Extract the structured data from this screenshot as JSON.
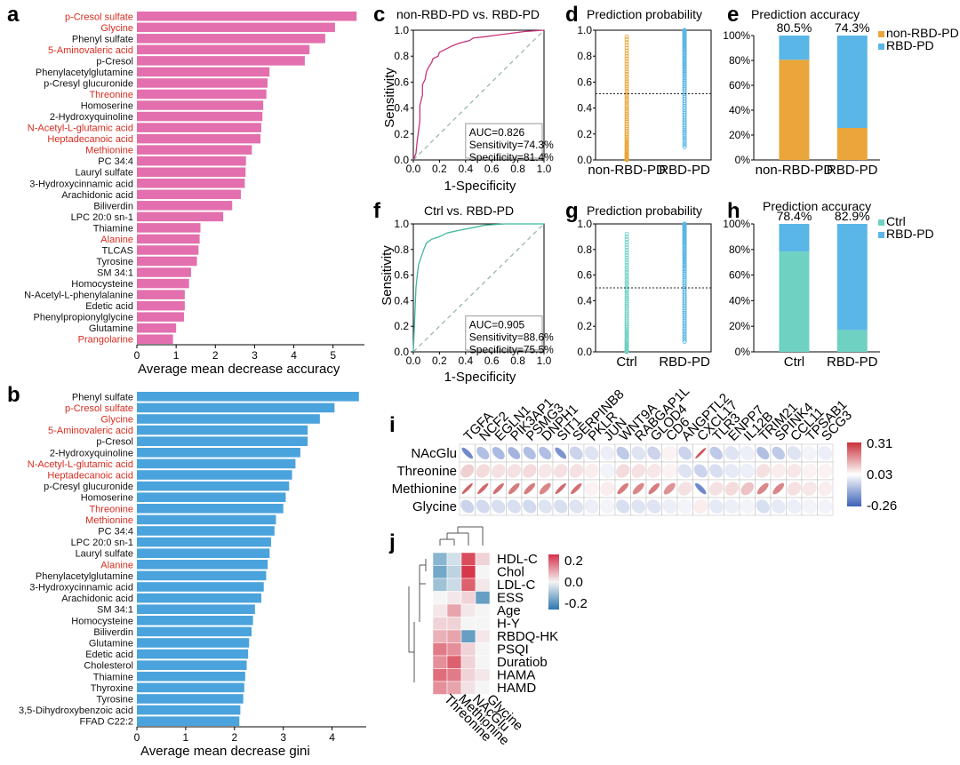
{
  "colors": {
    "pink": "#e36fae",
    "blue": "#4aa3dc",
    "orange": "#eaa63a",
    "lightblue": "#5ab6e6",
    "teal": "#6fd1c2",
    "roc_pink": "#c8357a",
    "roc_teal": "#3fb69d",
    "red_text": "#d62d20"
  },
  "panels": {
    "a": {
      "letter": "a",
      "xlabel": "Average mean decrease accuracy",
      "ticks": [
        "0",
        "1",
        "2",
        "3",
        "4",
        "5"
      ]
    },
    "b": {
      "letter": "b",
      "xlabel": "Average mean decrease gini",
      "ticks": [
        "0",
        "1",
        "2",
        "3",
        "4"
      ]
    },
    "c": {
      "letter": "c",
      "title": "non-RBD-PD vs. RBD-PD",
      "ylabel": "Sensitivity",
      "xlabel": "1-Specificity",
      "auc": "AUC=0.826",
      "sens": "Sensitivity=74.3%",
      "spec": "Specificity=81.4%"
    },
    "d": {
      "letter": "d",
      "title": "Prediction probability",
      "cats": [
        "non-RBD-PD",
        "RBD-PD"
      ]
    },
    "e": {
      "letter": "e",
      "title": "Prediction accuracy",
      "cats": [
        "non-RBD-PD",
        "RBD-PD"
      ],
      "pct": [
        "80.5%",
        "74.3%"
      ],
      "legend": [
        "non-RBD-PD",
        "RBD-PD"
      ]
    },
    "f": {
      "letter": "f",
      "title": "Ctrl vs. RBD-PD",
      "ylabel": "Sensitivity",
      "xlabel": "1-Specificity",
      "auc": "AUC=0.905",
      "sens": "Sensitivity=88.6%",
      "spec": "Specificity=75.5%"
    },
    "g": {
      "letter": "g",
      "title": "Prediction probability",
      "cats": [
        "Ctrl",
        "RBD-PD"
      ]
    },
    "h": {
      "letter": "h",
      "title": "Prediction accuracy",
      "cats": [
        "Ctrl",
        "RBD-PD"
      ],
      "pct": [
        "78.4%",
        "82.9%"
      ],
      "legend": [
        "Ctrl",
        "RBD-PD"
      ]
    },
    "i": {
      "letter": "i",
      "rows": [
        "NAcGlu",
        "Threonine",
        "Methionine",
        "Glycine"
      ],
      "cols": [
        "TGFA",
        "NCF2",
        "EGLN1",
        "PIK3AP1",
        "PSMG3",
        "DNPH1",
        "SIT1",
        "SERPINB8",
        "PKLR",
        "JUN",
        "WNT9A",
        "RABGAP1L",
        "GLOD4",
        "CD6",
        "ANGPTL2",
        "CXCL17",
        "TLR3",
        "ENPP7",
        "IL12B",
        "TRIM21",
        "SPINK4",
        "CCL11",
        "TPSAB1",
        "SCG3"
      ],
      "scale": [
        "0.31",
        "0.03",
        "-0.26"
      ]
    },
    "j": {
      "letter": "j",
      "rows": [
        "HDL-C",
        "Chol",
        "LDL-C",
        "ESS",
        "Age",
        "H-Y",
        "RBDQ-HK",
        "PSQI",
        "Duratiob",
        "HAMA",
        "HAMD"
      ],
      "cols": [
        "Threonine",
        "Methionine",
        "NAcGlu",
        "Glycine"
      ],
      "scale": [
        "0.2",
        "0.0",
        "-0.2"
      ]
    }
  },
  "chart_data": [
    {
      "type": "bar",
      "panel": "a",
      "categories": [
        "p-Cresol sulfate",
        "Glycine",
        "Phenyl sulfate",
        "5-Aminovaleric acid",
        "p-Cresol",
        "Phenylacetylglutamine",
        "p-Cresyl glucuronide",
        "Threonine",
        "Homoserine",
        "2-Hydroxyquinoline",
        "N-Acetyl-L-glutamic acid",
        "Heptadecanoic acid",
        "Methionine",
        "PC 34:4",
        "Lauryl sulfate",
        "3-Hydroxycinnamic acid",
        "Arachidonic acid",
        "Biliverdin",
        "LPC 20:0 sn-1",
        "Thiamine",
        "Alanine",
        "TLCAS",
        "Tyrosine",
        "SM 34:1",
        "Homocysteine",
        "N-Acetyl-L-phenylalanine",
        "Edetic acid",
        "Phenylpropionylglycine",
        "Glutamine",
        "Prangolarine"
      ],
      "values": [
        5.6,
        5.05,
        4.8,
        4.4,
        4.28,
        3.38,
        3.33,
        3.3,
        3.22,
        3.2,
        3.17,
        3.15,
        2.93,
        2.78,
        2.77,
        2.75,
        2.65,
        2.43,
        2.2,
        1.62,
        1.6,
        1.57,
        1.53,
        1.38,
        1.33,
        1.22,
        1.22,
        1.2,
        1.0,
        0.92
      ],
      "highlight": [
        1,
        1,
        0,
        1,
        0,
        0,
        0,
        1,
        0,
        0,
        1,
        1,
        1,
        0,
        0,
        0,
        0,
        0,
        0,
        0,
        1,
        0,
        0,
        0,
        0,
        0,
        0,
        0,
        0,
        1
      ],
      "xlabel": "Average mean decrease accuracy",
      "xlim": [
        0,
        5.8
      ]
    },
    {
      "type": "bar",
      "panel": "b",
      "categories": [
        "Phenyl sulfate",
        "p-Cresol sulfate",
        "Glycine",
        "5-Aminovaleric acid",
        "p-Cresol",
        "2-Hydroxyquinoline",
        "N-Acetyl-L-glutamic acid",
        "Heptadecanoic acid",
        "p-Cresyl glucuronide",
        "Homoserine",
        "Threonine",
        "Methionine",
        "PC 34:4",
        "LPC 20:0 sn-1",
        "Lauryl sulfate",
        "Alanine",
        "Phenylacetylglutamine",
        "3-Hydroxycinnamic acid",
        "Arachidonic acid",
        "SM 34:1",
        "Homocysteine",
        "Biliverdin",
        "Glutamine",
        "Edetic acid",
        "Cholesterol",
        "Thiamine",
        "Thyroxine",
        "Tyrosine",
        "3,5-Dihydroxybenzoic acid",
        "FFAD C22:2"
      ],
      "values": [
        4.55,
        4.05,
        3.75,
        3.5,
        3.5,
        3.35,
        3.25,
        3.18,
        3.12,
        3.05,
        3.0,
        2.85,
        2.82,
        2.75,
        2.72,
        2.68,
        2.65,
        2.6,
        2.55,
        2.42,
        2.38,
        2.35,
        2.3,
        2.28,
        2.25,
        2.22,
        2.2,
        2.18,
        2.12,
        2.1
      ],
      "highlight": [
        0,
        1,
        1,
        1,
        0,
        0,
        1,
        1,
        0,
        0,
        1,
        1,
        0,
        0,
        0,
        1,
        0,
        0,
        0,
        0,
        0,
        0,
        0,
        0,
        0,
        0,
        0,
        0,
        0,
        0
      ],
      "xlabel": "Average mean decrease gini",
      "xlim": [
        0,
        4.7
      ]
    },
    {
      "type": "line",
      "panel": "c",
      "x": [
        0,
        0.02,
        0.03,
        0.05,
        0.05,
        0.07,
        0.07,
        0.09,
        0.1,
        0.12,
        0.14,
        0.15,
        0.19,
        0.2,
        0.24,
        0.3,
        0.35,
        0.43,
        0.46,
        0.55,
        0.62,
        0.7,
        0.85,
        1.0
      ],
      "y": [
        0,
        0.05,
        0.15,
        0.3,
        0.42,
        0.5,
        0.58,
        0.62,
        0.68,
        0.72,
        0.75,
        0.78,
        0.8,
        0.83,
        0.85,
        0.88,
        0.9,
        0.92,
        0.94,
        0.95,
        0.96,
        0.97,
        0.99,
        1.0
      ],
      "xlabel": "1-Specificity",
      "ylabel": "Sensitivity",
      "xlim": [
        0,
        1
      ],
      "ylim": [
        0,
        1
      ]
    },
    {
      "type": "line",
      "panel": "f",
      "x": [
        0,
        0.01,
        0.02,
        0.03,
        0.04,
        0.06,
        0.08,
        0.1,
        0.14,
        0.2,
        0.26,
        0.35,
        0.45,
        0.55,
        0.7,
        0.85,
        1.0
      ],
      "y": [
        0,
        0.25,
        0.5,
        0.6,
        0.68,
        0.74,
        0.8,
        0.85,
        0.88,
        0.9,
        0.93,
        0.95,
        0.97,
        0.99,
        1.0,
        1.0,
        1.0
      ],
      "xlabel": "1-Specificity",
      "ylabel": "Sensitivity",
      "xlim": [
        0,
        1
      ],
      "ylim": [
        0,
        1
      ]
    },
    {
      "type": "scatter",
      "panel": "d",
      "categories": [
        "non-RBD-PD",
        "RBD-PD"
      ],
      "ranges": [
        [
          0.0,
          0.95
        ],
        [
          0.1,
          1.0
        ]
      ],
      "threshold": 0.51,
      "ylim": [
        0,
        1
      ]
    },
    {
      "type": "scatter",
      "panel": "g",
      "categories": [
        "Ctrl",
        "RBD-PD"
      ],
      "ranges": [
        [
          0.0,
          0.92
        ],
        [
          0.08,
          1.0
        ]
      ],
      "threshold": 0.5,
      "ylim": [
        0,
        1
      ]
    },
    {
      "type": "bar",
      "panel": "e",
      "categories": [
        "non-RBD-PD",
        "RBD-PD"
      ],
      "series": [
        {
          "name": "non-RBD-PD",
          "values": [
            80.5,
            25.7
          ]
        },
        {
          "name": "RBD-PD",
          "values": [
            19.5,
            74.3
          ]
        }
      ],
      "ylim": [
        0,
        100
      ]
    },
    {
      "type": "bar",
      "panel": "h",
      "categories": [
        "Ctrl",
        "RBD-PD"
      ],
      "series": [
        {
          "name": "Ctrl",
          "values": [
            78.4,
            17.1
          ]
        },
        {
          "name": "RBD-PD",
          "values": [
            21.6,
            82.9
          ]
        }
      ],
      "ylim": [
        0,
        100
      ]
    },
    {
      "type": "heatmap",
      "panel": "i",
      "rows": [
        "NAcGlu",
        "Threonine",
        "Methionine",
        "Glycine"
      ],
      "cols": [
        "TGFA",
        "NCF2",
        "EGLN1",
        "PIK3AP1",
        "PSMG3",
        "DNPH1",
        "SIT1",
        "SERPINB8",
        "PKLR",
        "JUN",
        "WNT9A",
        "RABGAP1L",
        "GLOD4",
        "CD6",
        "ANGPTL2",
        "CXCL17",
        "TLR3",
        "ENPP7",
        "IL12B",
        "TRIM21",
        "SPINK4",
        "CCL11",
        "TPSAB1",
        "SCG3"
      ],
      "values": [
        [
          -0.22,
          -0.12,
          -0.13,
          -0.14,
          -0.12,
          -0.12,
          -0.2,
          -0.08,
          -0.05,
          -0.03,
          -0.1,
          -0.05,
          -0.08,
          0.02,
          -0.08,
          0.28,
          -0.1,
          -0.05,
          -0.03,
          -0.12,
          -0.1,
          -0.05,
          -0.02,
          -0.03
        ],
        [
          0.08,
          0.06,
          0.05,
          0.05,
          0.06,
          0.04,
          0.05,
          0.05,
          0.03,
          -0.02,
          0.06,
          0.05,
          0.04,
          0.02,
          -0.05,
          -0.08,
          -0.06,
          -0.04,
          -0.03,
          0.05,
          0.03,
          0.04,
          0.02,
          0.02
        ],
        [
          0.26,
          0.25,
          0.24,
          0.22,
          0.22,
          0.2,
          0.25,
          0.24,
          0.02,
          0.03,
          0.22,
          0.2,
          0.22,
          0.18,
          0.05,
          -0.22,
          0.05,
          0.06,
          0.1,
          0.2,
          0.2,
          0.05,
          0.04,
          0.03
        ],
        [
          -0.08,
          -0.07,
          -0.06,
          -0.06,
          -0.07,
          -0.05,
          -0.06,
          -0.05,
          -0.03,
          -0.02,
          -0.06,
          -0.05,
          -0.05,
          -0.03,
          -0.02,
          0.03,
          -0.04,
          -0.03,
          -0.02,
          -0.06,
          -0.04,
          -0.03,
          -0.02,
          -0.02
        ]
      ]
    },
    {
      "type": "heatmap",
      "panel": "j",
      "rows": [
        "HDL-C",
        "Chol",
        "LDL-C",
        "ESS",
        "Age",
        "H-Y",
        "RBDQ-HK",
        "PSQI",
        "Duratiob",
        "HAMA",
        "HAMD"
      ],
      "cols": [
        "Threonine",
        "Methionine",
        "NAcGlu",
        "Glycine"
      ],
      "values": [
        [
          -0.15,
          -0.05,
          0.25,
          0.05
        ],
        [
          -0.18,
          -0.08,
          0.28,
          0.0
        ],
        [
          -0.12,
          -0.06,
          0.22,
          0.02
        ],
        [
          0.0,
          0.02,
          0.05,
          -0.2
        ],
        [
          0.02,
          0.12,
          0.02,
          0.0
        ],
        [
          0.05,
          0.05,
          0.0,
          0.0
        ],
        [
          0.1,
          0.12,
          -0.2,
          0.02
        ],
        [
          0.18,
          0.15,
          0.05,
          0.0
        ],
        [
          0.15,
          0.22,
          0.05,
          0.0
        ],
        [
          0.2,
          0.18,
          0.05,
          0.02
        ],
        [
          0.15,
          0.12,
          0.03,
          0.0
        ]
      ]
    }
  ]
}
